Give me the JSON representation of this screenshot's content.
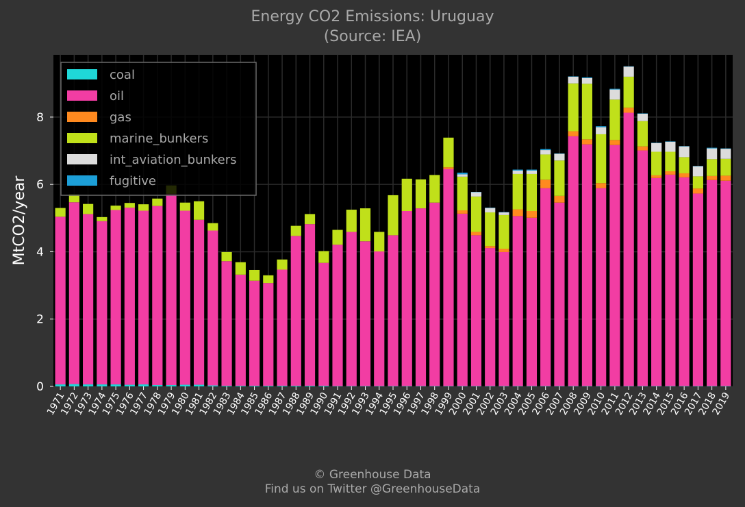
{
  "header": {
    "title_line1": "Energy CO2 Emissions: Uruguay",
    "title_line2": "(Source: IEA)"
  },
  "footer": {
    "credit": "© Greenhouse Data",
    "twitter": "Find us on Twitter @GreenhouseData"
  },
  "colors": {
    "background": "#333333",
    "plot_background": "#000000",
    "grid": "#2b2b2b",
    "text": "#a9a9a9",
    "tick_text": "#ffffff"
  },
  "chart_data": {
    "type": "bar",
    "stacked": true,
    "title": "Energy CO2 Emissions: Uruguay",
    "subtitle": "(Source: IEA)",
    "xlabel": "",
    "ylabel": "MtCO2/year",
    "ylim": [
      0,
      9.85
    ],
    "yticks": [
      0,
      2,
      4,
      6,
      8
    ],
    "grid": true,
    "legend_position": "top-left",
    "categories": [
      "1971",
      "1972",
      "1973",
      "1974",
      "1975",
      "1976",
      "1977",
      "1978",
      "1979",
      "1980",
      "1981",
      "1982",
      "1983",
      "1984",
      "1985",
      "1986",
      "1987",
      "1988",
      "1989",
      "1990",
      "1991",
      "1992",
      "1993",
      "1994",
      "1995",
      "1996",
      "1997",
      "1998",
      "1999",
      "2000",
      "2001",
      "2002",
      "2003",
      "2004",
      "2005",
      "2006",
      "2007",
      "2008",
      "2009",
      "2010",
      "2011",
      "2012",
      "2013",
      "2014",
      "2015",
      "2016",
      "2017",
      "2018",
      "2019"
    ],
    "series": [
      {
        "name": "coal",
        "color": "#1fd8d8",
        "values": [
          0.06,
          0.07,
          0.06,
          0.06,
          0.06,
          0.05,
          0.06,
          0.04,
          0.04,
          0.05,
          0.05,
          0.03,
          0.02,
          0.02,
          0.02,
          0.02,
          0.02,
          0.02,
          0.02,
          0.02,
          0.01,
          0.01,
          0.01,
          0.01,
          0.01,
          0.01,
          0.01,
          0.01,
          0.01,
          0.01,
          0.01,
          0.01,
          0.01,
          0.01,
          0.01,
          0.01,
          0.01,
          0.01,
          0.01,
          0.01,
          0.01,
          0.01,
          0.01,
          0.01,
          0.01,
          0.01,
          0.01,
          0.01,
          0.01
        ]
      },
      {
        "name": "oil",
        "color": "#f23da3",
        "values": [
          4.98,
          5.4,
          5.06,
          4.85,
          5.18,
          5.26,
          5.16,
          5.32,
          5.68,
          5.17,
          4.9,
          4.6,
          3.7,
          3.3,
          3.12,
          3.05,
          3.45,
          4.45,
          4.8,
          3.65,
          4.2,
          4.58,
          4.3,
          4.0,
          4.48,
          5.2,
          5.28,
          5.45,
          6.45,
          5.12,
          4.48,
          4.1,
          3.98,
          5.05,
          5.0,
          5.88,
          5.45,
          7.42,
          7.18,
          5.88,
          7.16,
          8.12,
          7.0,
          6.18,
          6.28,
          6.2,
          5.72,
          6.12,
          6.1
        ]
      },
      {
        "name": "gas",
        "color": "#ff8a1f",
        "values": [
          0,
          0,
          0,
          0,
          0,
          0,
          0,
          0,
          0,
          0,
          0,
          0,
          0,
          0,
          0,
          0,
          0,
          0,
          0,
          0,
          0,
          0,
          0,
          0,
          0,
          0,
          0,
          0,
          0.05,
          0.1,
          0.1,
          0.06,
          0.1,
          0.2,
          0.2,
          0.25,
          0.2,
          0.15,
          0.15,
          0.15,
          0.15,
          0.15,
          0.12,
          0.08,
          0.1,
          0.12,
          0.15,
          0.12,
          0.15
        ]
      },
      {
        "name": "marine_bunkers",
        "color": "#c0e01a",
        "values": [
          0.26,
          0.24,
          0.3,
          0.12,
          0.13,
          0.14,
          0.19,
          0.22,
          0.25,
          0.24,
          0.55,
          0.22,
          0.27,
          0.37,
          0.32,
          0.23,
          0.3,
          0.3,
          0.3,
          0.35,
          0.44,
          0.66,
          0.98,
          0.58,
          1.19,
          0.96,
          0.86,
          0.82,
          0.88,
          1.0,
          1.05,
          1.0,
          1.0,
          1.05,
          1.1,
          0.75,
          1.05,
          1.42,
          1.65,
          1.45,
          1.2,
          0.92,
          0.75,
          0.7,
          0.58,
          0.48,
          0.36,
          0.5,
          0.5
        ]
      },
      {
        "name": "int_aviation_bunkers",
        "color": "#dcdcdc",
        "values": [
          0,
          0,
          0,
          0,
          0,
          0,
          0,
          0,
          0,
          0,
          0,
          0,
          0,
          0,
          0,
          0,
          0,
          0,
          0,
          0,
          0,
          0,
          0,
          0,
          0,
          0,
          0,
          0,
          0,
          0.07,
          0.13,
          0.13,
          0.08,
          0.1,
          0.1,
          0.13,
          0.2,
          0.2,
          0.17,
          0.21,
          0.3,
          0.3,
          0.22,
          0.26,
          0.3,
          0.32,
          0.3,
          0.32,
          0.3
        ]
      },
      {
        "name": "fugitive",
        "color": "#1c9fd8",
        "values": [
          0,
          0,
          0,
          0,
          0,
          0,
          0,
          0,
          0,
          0,
          0,
          0,
          0,
          0,
          0,
          0,
          0,
          0,
          0,
          0,
          0,
          0,
          0,
          0,
          0,
          0,
          0,
          0,
          0,
          0.05,
          0.01,
          0.01,
          0.01,
          0.03,
          0.03,
          0.03,
          0.01,
          0.01,
          0.02,
          0.03,
          0.02,
          0.01,
          0.01,
          0.01,
          0.01,
          0.01,
          0.01,
          0.02,
          0.01
        ]
      }
    ]
  }
}
